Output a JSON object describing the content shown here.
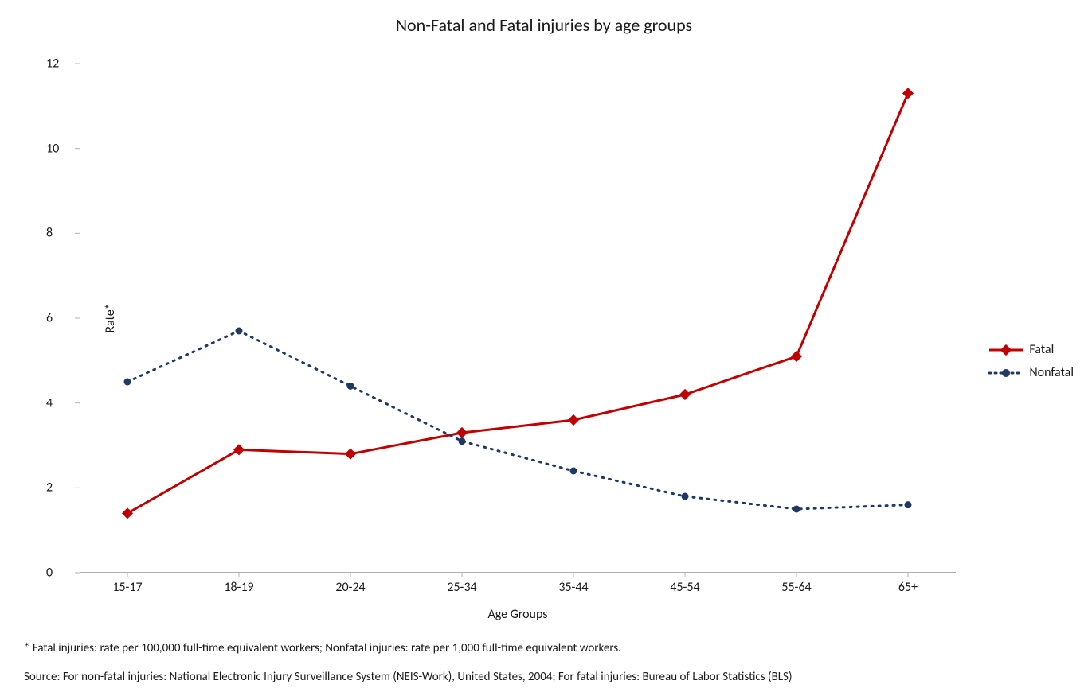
{
  "chart": {
    "type": "line",
    "title": "Non-Fatal and Fatal injuries by age groups",
    "title_fontsize": 22,
    "title_color": "#1a1a1a",
    "background_color": "#ffffff",
    "xlabel": "Age Groups",
    "ylabel": "Rate*",
    "label_fontsize": 16,
    "categories": [
      "15-17",
      "18-19",
      "20-24",
      "25-34",
      "35-44",
      "45-54",
      "55-64",
      "65+"
    ],
    "ylim": [
      0,
      12
    ],
    "ytick_step": 2,
    "yticks": [
      0,
      2,
      4,
      6,
      8,
      10,
      12
    ],
    "axis_color": "#b0b0b0",
    "tick_fontsize": 16,
    "series": [
      {
        "name": "Fatal",
        "values": [
          1.4,
          2.9,
          2.8,
          3.3,
          3.6,
          4.2,
          5.1,
          11.3
        ],
        "color": "#c00000",
        "line_width": 3,
        "dash": "solid",
        "marker": "diamond",
        "marker_size": 10
      },
      {
        "name": "Nonfatal",
        "values": [
          4.5,
          5.7,
          4.4,
          3.1,
          2.4,
          1.8,
          1.5,
          1.6
        ],
        "color": "#1f3864",
        "line_width": 3,
        "dash": "dotted",
        "marker": "circle",
        "marker_size": 9
      }
    ],
    "legend": {
      "position": "right",
      "items": [
        "Fatal",
        "Nonfatal"
      ]
    },
    "footnotes": [
      "* Fatal injuries: rate per 100,000 full-time equivalent workers; Nonfatal injuries: rate per 1,000 full-time equivalent workers.",
      "Source: For non-fatal injuries: National Electronic Injury Surveillance System (NEIS-Work), United States, 2004; For fatal injuries: Bureau of Labor Statistics (BLS)"
    ]
  }
}
